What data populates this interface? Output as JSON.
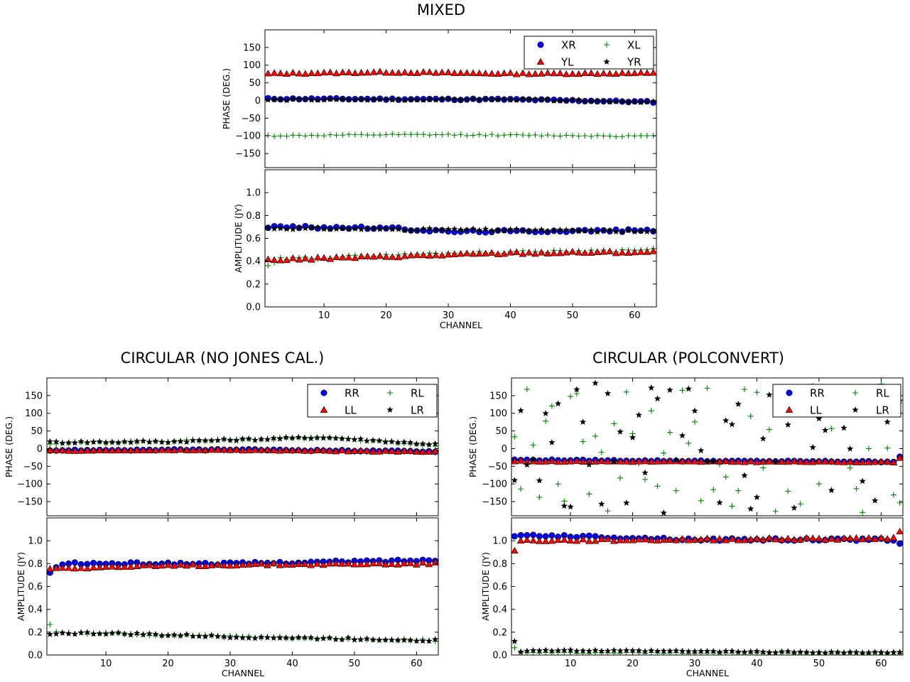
{
  "figure": {
    "titles": [
      "MIXED",
      "CIRCULAR (NO JONES CAL.)",
      "CIRCULAR (POLCONVERT)"
    ],
    "colors": {
      "blue": "#0000ff",
      "red": "#ff0000",
      "green": "#008000",
      "black": "#000000"
    }
  },
  "chart_data": [
    {
      "type": "scatter",
      "title": "MIXED",
      "ylabel": "PHASE (DEG.)",
      "xlabel": "",
      "xlim": [
        0.5,
        63.5
      ],
      "ylim": [
        -190,
        200
      ],
      "yticks": [
        -150,
        -100,
        -50,
        0,
        50,
        100,
        150
      ],
      "xticks": [],
      "legend_position": "top-right",
      "x": "channels 1-63",
      "series": [
        {
          "name": "XR",
          "marker": "circle",
          "color": "#0000ff",
          "base": 0,
          "noise": 2,
          "seed": 11,
          "points": [
            [
              1,
              5
            ],
            [
              40,
              3
            ],
            [
              63,
              -4
            ]
          ]
        },
        {
          "name": "XL",
          "marker": "plus",
          "color": "#008000",
          "base": -100,
          "noise": 2,
          "seed": 12,
          "points": [
            [
              1,
              -100
            ],
            [
              20,
              -97
            ],
            [
              30,
              -97
            ],
            [
              63,
              -101
            ]
          ]
        },
        {
          "name": "YL",
          "marker": "triangle",
          "color": "#ff0000",
          "base": 77,
          "noise": 2,
          "seed": 13,
          "points": [
            [
              1,
              76
            ],
            [
              20,
              80
            ],
            [
              40,
              76
            ],
            [
              63,
              77
            ]
          ]
        },
        {
          "name": "YR",
          "marker": "star",
          "color": "#000000",
          "base": 0,
          "noise": 2,
          "seed": 14,
          "points": [
            [
              1,
              2
            ],
            [
              40,
              3
            ],
            [
              63,
              -4
            ]
          ]
        }
      ]
    },
    {
      "type": "scatter",
      "ylabel": "AMPLITUDE (JY)",
      "xlabel": "CHANNEL",
      "xlim": [
        0.5,
        63.5
      ],
      "ylim": [
        0.0,
        1.2
      ],
      "yticks": [
        0.0,
        0.2,
        0.4,
        0.6,
        0.8,
        1.0
      ],
      "xticks": [
        10,
        20,
        30,
        40,
        50,
        60
      ],
      "series": [
        {
          "name": "XR",
          "marker": "circle",
          "color": "#0000ff",
          "noise": 0.01,
          "seed": 21,
          "points": [
            [
              1,
              0.7
            ],
            [
              20,
              0.69
            ],
            [
              30,
              0.66
            ],
            [
              63,
              0.67
            ]
          ]
        },
        {
          "name": "XL",
          "marker": "plus",
          "color": "#008000",
          "noise": 0.012,
          "seed": 22,
          "points": [
            [
              1,
              0.35
            ],
            [
              3,
              0.42
            ],
            [
              30,
              0.47
            ],
            [
              63,
              0.5
            ]
          ]
        },
        {
          "name": "YL",
          "marker": "triangle",
          "color": "#ff0000",
          "noise": 0.01,
          "seed": 23,
          "points": [
            [
              1,
              0.41
            ],
            [
              20,
              0.44
            ],
            [
              40,
              0.47
            ],
            [
              63,
              0.48
            ]
          ]
        },
        {
          "name": "YR",
          "marker": "star",
          "color": "#000000",
          "noise": 0.01,
          "seed": 24,
          "points": [
            [
              1,
              0.69
            ],
            [
              20,
              0.68
            ],
            [
              63,
              0.66
            ]
          ]
        }
      ]
    },
    {
      "type": "scatter",
      "title": "CIRCULAR (NO JONES CAL.)",
      "ylabel": "PHASE (DEG.)",
      "xlabel": "",
      "xlim": [
        0.5,
        63.5
      ],
      "ylim": [
        -190,
        200
      ],
      "yticks": [
        -150,
        -100,
        -50,
        0,
        50,
        100,
        150
      ],
      "xticks": [],
      "legend_position": "top-right",
      "series": [
        {
          "name": "RR",
          "marker": "circle",
          "color": "#0000ff",
          "noise": 1.5,
          "seed": 31,
          "points": [
            [
              1,
              -5
            ],
            [
              30,
              -3
            ],
            [
              63,
              -8
            ]
          ]
        },
        {
          "name": "RL",
          "marker": "plus",
          "color": "#008000",
          "noise": 3,
          "seed": 32,
          "points": [
            [
              1,
              15
            ],
            [
              30,
              25
            ],
            [
              45,
              32
            ],
            [
              63,
              10
            ]
          ]
        },
        {
          "name": "LL",
          "marker": "triangle",
          "color": "#ff0000",
          "noise": 1.5,
          "seed": 33,
          "points": [
            [
              1,
              -6
            ],
            [
              30,
              -4
            ],
            [
              63,
              -9
            ]
          ]
        },
        {
          "name": "LR",
          "marker": "star",
          "color": "#000000",
          "noise": 3,
          "seed": 34,
          "points": [
            [
              1,
              18
            ],
            [
              20,
              20
            ],
            [
              45,
              32
            ],
            [
              63,
              12
            ]
          ]
        }
      ]
    },
    {
      "type": "scatter",
      "ylabel": "AMPLITUDE (JY)",
      "xlabel": "CHANNEL",
      "xlim": [
        0.5,
        63.5
      ],
      "ylim": [
        0.0,
        1.2
      ],
      "yticks": [
        0.0,
        0.2,
        0.4,
        0.6,
        0.8,
        1.0
      ],
      "xticks": [
        10,
        20,
        30,
        40,
        50,
        60
      ],
      "series": [
        {
          "name": "RR",
          "marker": "circle",
          "color": "#0000ff",
          "noise": 0.01,
          "seed": 41,
          "points": [
            [
              1,
              0.72
            ],
            [
              3,
              0.8
            ],
            [
              30,
              0.8
            ],
            [
              63,
              0.83
            ]
          ]
        },
        {
          "name": "RL",
          "marker": "plus",
          "color": "#008000",
          "noise": 0.01,
          "seed": 42,
          "points": [
            [
              1,
              0.27
            ],
            [
              2,
              0.2
            ],
            [
              30,
              0.16
            ],
            [
              63,
              0.13
            ]
          ]
        },
        {
          "name": "LL",
          "marker": "triangle",
          "color": "#ff0000",
          "noise": 0.01,
          "seed": 43,
          "points": [
            [
              1,
              0.76
            ],
            [
              30,
              0.79
            ],
            [
              63,
              0.8
            ]
          ]
        },
        {
          "name": "LR",
          "marker": "star",
          "color": "#000000",
          "noise": 0.01,
          "seed": 44,
          "points": [
            [
              1,
              0.19
            ],
            [
              10,
              0.19
            ],
            [
              30,
              0.16
            ],
            [
              63,
              0.13
            ]
          ]
        }
      ]
    },
    {
      "type": "scatter",
      "title": "CIRCULAR (POLCONVERT)",
      "ylabel": "PHASE (DEG.)",
      "xlabel": "",
      "xlim": [
        0.5,
        63.5
      ],
      "ylim": [
        -190,
        200
      ],
      "yticks": [
        -150,
        -100,
        -50,
        0,
        50,
        100,
        150
      ],
      "xticks": [],
      "legend_position": "top-right",
      "series": [
        {
          "name": "RR",
          "marker": "circle",
          "color": "#0000ff",
          "noise": 1.5,
          "seed": 51,
          "points": [
            [
              1,
              -32
            ],
            [
              30,
              -35
            ],
            [
              62,
              -37
            ],
            [
              63,
              -22
            ]
          ]
        },
        {
          "name": "RL",
          "marker": "plus",
          "color": "#008000",
          "random": true,
          "noise": 0,
          "seed": 52,
          "points": [
            [
              1,
              0
            ],
            [
              63,
              0
            ]
          ]
        },
        {
          "name": "LL",
          "marker": "triangle",
          "color": "#ff0000",
          "noise": 1.5,
          "seed": 53,
          "points": [
            [
              1,
              -36
            ],
            [
              30,
              -37
            ],
            [
              62,
              -38
            ],
            [
              63,
              -28
            ]
          ]
        },
        {
          "name": "LR",
          "marker": "star",
          "color": "#000000",
          "random": true,
          "noise": 0,
          "seed": 54,
          "points": [
            [
              1,
              0
            ],
            [
              63,
              0
            ]
          ]
        }
      ]
    },
    {
      "type": "scatter",
      "ylabel": "AMPLITUDE (JY)",
      "xlabel": "CHANNEL",
      "xlim": [
        0.5,
        63.5
      ],
      "ylim": [
        0.0,
        1.2
      ],
      "yticks": [
        0.0,
        0.2,
        0.4,
        0.6,
        0.8,
        1.0
      ],
      "xticks": [
        10,
        20,
        30,
        40,
        50,
        60
      ],
      "series": [
        {
          "name": "RR",
          "marker": "circle",
          "color": "#0000ff",
          "noise": 0.01,
          "seed": 61,
          "points": [
            [
              1,
              1.03
            ],
            [
              3,
              1.05
            ],
            [
              30,
              1.01
            ],
            [
              62,
              1.01
            ],
            [
              63,
              0.98
            ]
          ]
        },
        {
          "name": "RL",
          "marker": "plus",
          "color": "#008000",
          "noise": 0.006,
          "seed": 62,
          "points": [
            [
              1,
              0.06
            ],
            [
              2,
              0.02
            ],
            [
              63,
              0.02
            ]
          ]
        },
        {
          "name": "LL",
          "marker": "triangle",
          "color": "#ff0000",
          "noise": 0.01,
          "seed": 63,
          "points": [
            [
              1,
              0.91
            ],
            [
              2,
              1.0
            ],
            [
              30,
              1.01
            ],
            [
              62,
              1.02
            ],
            [
              63,
              1.09
            ]
          ]
        },
        {
          "name": "LR",
          "marker": "star",
          "color": "#000000",
          "noise": 0.006,
          "seed": 64,
          "points": [
            [
              1,
              0.12
            ],
            [
              2,
              0.03
            ],
            [
              3,
              0.04
            ],
            [
              63,
              0.02
            ]
          ]
        }
      ]
    }
  ]
}
